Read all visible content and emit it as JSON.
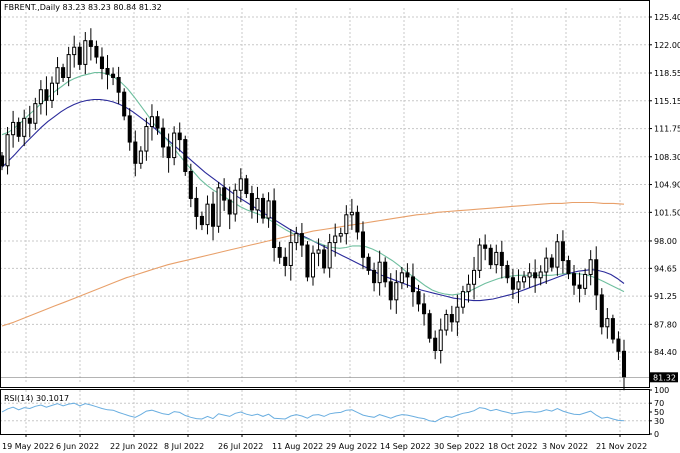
{
  "header": {
    "symbol": "FBRENT.,Daily",
    "ohlc": "83.23 83.23 80.84 81.32"
  },
  "rsi_header": {
    "label": "RSI(14) 30.1017"
  },
  "colors": {
    "candle": "#000000",
    "ma_fast": "#6fbf9f",
    "ma_mid": "#2b2b9b",
    "ma_slow": "#e8a06a",
    "rsi": "#6aaee0",
    "grid": "#c8c8c8"
  },
  "chart_data": [
    {
      "type": "candlestick",
      "title": "FBRENT.,Daily",
      "ylim": [
        80.5,
        126.5
      ],
      "y_ticks": [
        "125.40",
        "122.00",
        "118.55",
        "115.15",
        "111.75",
        "108.30",
        "104.90",
        "101.50",
        "98.00",
        "94.65",
        "91.25",
        "87.80",
        "84.40"
      ],
      "x_ticks": [
        "19 May 2022",
        "6 Jun 2022",
        "22 Jun 2022",
        "8 Jul 2022",
        "26 Jul 2022",
        "11 Aug 2022",
        "29 Aug 2022",
        "14 Sep 2022",
        "30 Sep 2022",
        "18 Oct 2022",
        "3 Nov 2022",
        "21 Nov 2022"
      ],
      "last_price_label": "81.32",
      "grid": true,
      "series": [
        {
          "kind": "ohlc",
          "close": [
            107.2,
            111.0,
            112.5,
            110.8,
            113.0,
            112.4,
            114.8,
            116.5,
            115.2,
            117.3,
            119.2,
            118.0,
            120.8,
            121.7,
            119.6,
            122.5,
            121.8,
            120.5,
            119.1,
            118.4,
            118.0,
            116.2,
            113.3,
            110.1,
            107.5,
            109.0,
            112.0,
            113.2,
            111.8,
            109.5,
            108.2,
            111.2,
            110.4,
            106.5,
            103.2,
            101.0,
            100.0,
            102.5,
            99.8,
            104.5,
            103.0,
            101.3,
            104.2,
            105.6,
            103.8,
            101.8,
            103.2,
            100.8,
            102.9,
            97.2,
            96.0,
            95.0,
            97.8,
            98.9,
            97.5,
            93.6,
            96.5,
            96.9,
            94.7,
            97.8,
            98.6,
            98.9,
            101.2,
            101.5,
            99.1,
            96.0,
            94.4,
            92.9,
            95.4,
            93.0,
            90.8,
            92.9,
            94.1,
            93.6,
            91.8,
            90.3,
            89.1,
            86.1,
            84.6,
            87.1,
            89.0,
            88.1,
            89.9,
            91.8,
            92.7,
            94.4,
            97.5,
            97.1,
            95.1,
            96.6,
            95.0,
            93.5,
            92.1,
            93.0,
            93.6,
            94.1,
            93.5,
            94.2,
            95.9,
            94.8,
            97.9,
            95.6,
            94.0,
            92.6,
            92.2,
            93.9,
            95.7,
            91.4,
            87.5,
            88.5,
            86.0,
            84.5,
            81.32
          ]
        },
        {
          "name": "",
          "kind": "ma",
          "values": [
            111.0,
            111.3,
            111.9,
            112.6,
            113.4,
            114.1,
            114.9,
            115.6,
            116.3,
            116.9,
            117.5,
            117.9,
            118.2,
            118.4,
            118.6,
            118.6,
            118.4,
            118.0,
            117.4,
            116.6,
            115.6,
            114.5,
            113.4,
            112.3,
            111.2,
            110.3,
            109.3,
            108.3,
            107.3,
            106.4,
            105.5,
            104.8,
            104.2,
            103.7,
            103.2,
            102.7,
            102.2,
            101.8,
            101.5,
            101.2,
            100.8,
            100.3,
            99.8,
            99.3,
            98.9,
            98.6,
            98.3,
            98.0,
            97.7,
            97.4,
            97.2,
            97.1,
            97.2,
            97.4,
            97.4,
            97.3,
            97.0,
            96.6,
            96.1,
            95.6,
            95.0,
            94.3,
            93.7,
            93.1,
            92.5,
            92.0,
            91.7,
            91.5,
            91.4,
            91.5,
            91.7,
            92.0,
            92.4,
            92.8,
            93.1,
            93.4,
            93.6,
            93.7,
            93.8,
            93.8,
            93.8,
            93.8,
            93.8,
            93.8,
            93.9,
            94.0,
            94.0,
            94.0,
            93.9,
            93.7,
            93.4,
            93.0,
            92.6,
            92.2,
            91.8
          ]
        },
        {
          "name": "",
          "kind": "ma",
          "values": [
            107.0,
            107.8,
            108.6,
            109.5,
            110.3,
            111.1,
            111.9,
            112.6,
            113.2,
            113.8,
            114.3,
            114.7,
            115.0,
            115.2,
            115.3,
            115.3,
            115.2,
            115.0,
            114.7,
            114.3,
            113.8,
            113.2,
            112.6,
            112.0,
            111.3,
            110.6,
            109.9,
            109.2,
            108.5,
            107.8,
            107.1,
            106.4,
            105.8,
            105.2,
            104.6,
            104.0,
            103.4,
            102.9,
            102.4,
            101.9,
            101.4,
            100.9,
            100.4,
            99.9,
            99.4,
            99.0,
            98.6,
            98.2,
            97.8,
            97.4,
            97.0,
            96.6,
            96.2,
            95.8,
            95.4,
            95.0,
            94.6,
            94.2,
            93.8,
            93.5,
            93.2,
            92.9,
            92.6,
            92.3,
            92.0,
            91.8,
            91.6,
            91.4,
            91.2,
            91.0,
            90.9,
            90.8,
            90.7,
            90.7,
            90.8,
            90.9,
            91.1,
            91.3,
            91.5,
            91.8,
            92.1,
            92.4,
            92.7,
            93.0,
            93.3,
            93.6,
            93.9,
            94.1,
            94.3,
            94.4,
            94.5,
            94.4,
            94.2,
            93.9,
            93.4,
            92.8
          ]
        },
        {
          "name": "",
          "kind": "ma",
          "values": [
            87.6,
            88.0,
            88.5,
            89.0,
            89.5,
            90.0,
            90.5,
            91.0,
            91.5,
            92.0,
            92.5,
            93.0,
            93.5,
            93.9,
            94.3,
            94.7,
            95.1,
            95.4,
            95.7,
            96.0,
            96.3,
            96.6,
            96.9,
            97.2,
            97.5,
            97.8,
            98.1,
            98.4,
            98.7,
            98.9,
            99.2,
            99.4,
            99.6,
            99.8,
            100.0,
            100.2,
            100.4,
            100.6,
            100.8,
            101.0,
            101.2,
            101.3,
            101.5,
            101.6,
            101.7,
            101.8,
            101.9,
            102.0,
            102.1,
            102.2,
            102.3,
            102.4,
            102.5,
            102.6,
            102.6,
            102.7,
            102.7,
            102.7,
            102.6,
            102.6,
            102.5
          ]
        }
      ]
    },
    {
      "type": "line",
      "title": "RSI(14) 30.1017",
      "ylim": [
        0,
        100
      ],
      "y_ticks": [
        "100",
        "70",
        "50",
        "30",
        "0"
      ],
      "grid": true,
      "series": [
        {
          "name": "",
          "values": [
            50,
            57,
            61,
            55,
            60,
            58,
            63,
            66,
            61,
            65,
            69,
            64,
            68,
            70,
            64,
            69,
            66,
            62,
            58,
            55,
            54,
            49,
            45,
            41,
            38,
            44,
            52,
            54,
            50,
            46,
            44,
            51,
            49,
            42,
            38,
            35,
            34,
            40,
            35,
            46,
            43,
            40,
            47,
            50,
            45,
            42,
            45,
            40,
            45,
            36,
            35,
            34,
            41,
            44,
            41,
            36,
            43,
            44,
            40,
            46,
            48,
            49,
            54,
            55,
            49,
            43,
            40,
            38,
            44,
            40,
            36,
            41,
            44,
            43,
            40,
            37,
            35,
            30,
            28,
            35,
            40,
            38,
            43,
            47,
            49,
            53,
            60,
            58,
            53,
            56,
            52,
            49,
            46,
            48,
            50,
            51,
            49,
            51,
            55,
            52,
            58,
            52,
            48,
            45,
            44,
            48,
            52,
            43,
            36,
            38,
            34,
            31,
            30
          ]
        }
      ]
    }
  ]
}
